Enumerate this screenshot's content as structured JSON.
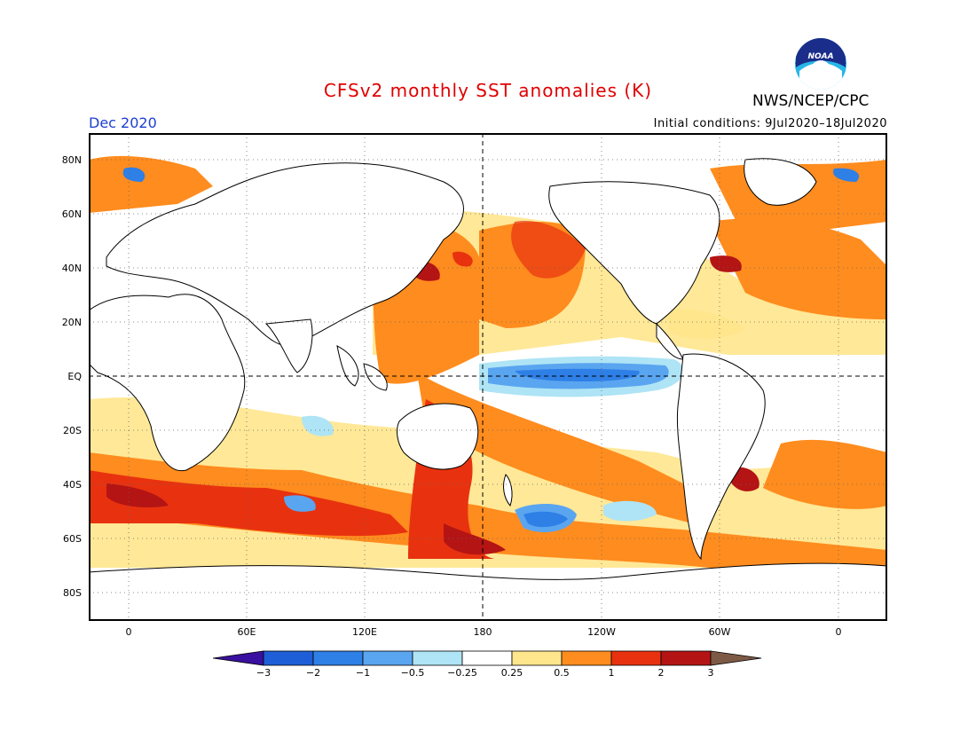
{
  "title": "CFSv2 monthly SST anomalies (K)",
  "month": "Dec 2020",
  "initial_conditions": "Initial conditions: 9Jul2020–18Jul2020",
  "agency": "NWS/NCEP/CPC",
  "logo": {
    "icon": "noaa-logo",
    "text": "NOAA"
  },
  "lat_labels": [
    "80N",
    "60N",
    "40N",
    "20N",
    "EQ",
    "20S",
    "40S",
    "60S",
    "80S"
  ],
  "lon_labels": [
    "0",
    "60E",
    "120E",
    "180",
    "120W",
    "60W",
    "0"
  ],
  "colorbar": {
    "labels": [
      "−3",
      "−2",
      "−1",
      "−0.5",
      "−0.25",
      "0.25",
      "0.5",
      "1",
      "2",
      "3"
    ],
    "colors": [
      "#3a10a0",
      "#1e5ed6",
      "#2e7fe6",
      "#5aa5f0",
      "#aee4f5",
      "#ffffff",
      "#ffe68c",
      "#ff8c1e",
      "#e8320f",
      "#b41414",
      "#7d5a46"
    ]
  }
}
